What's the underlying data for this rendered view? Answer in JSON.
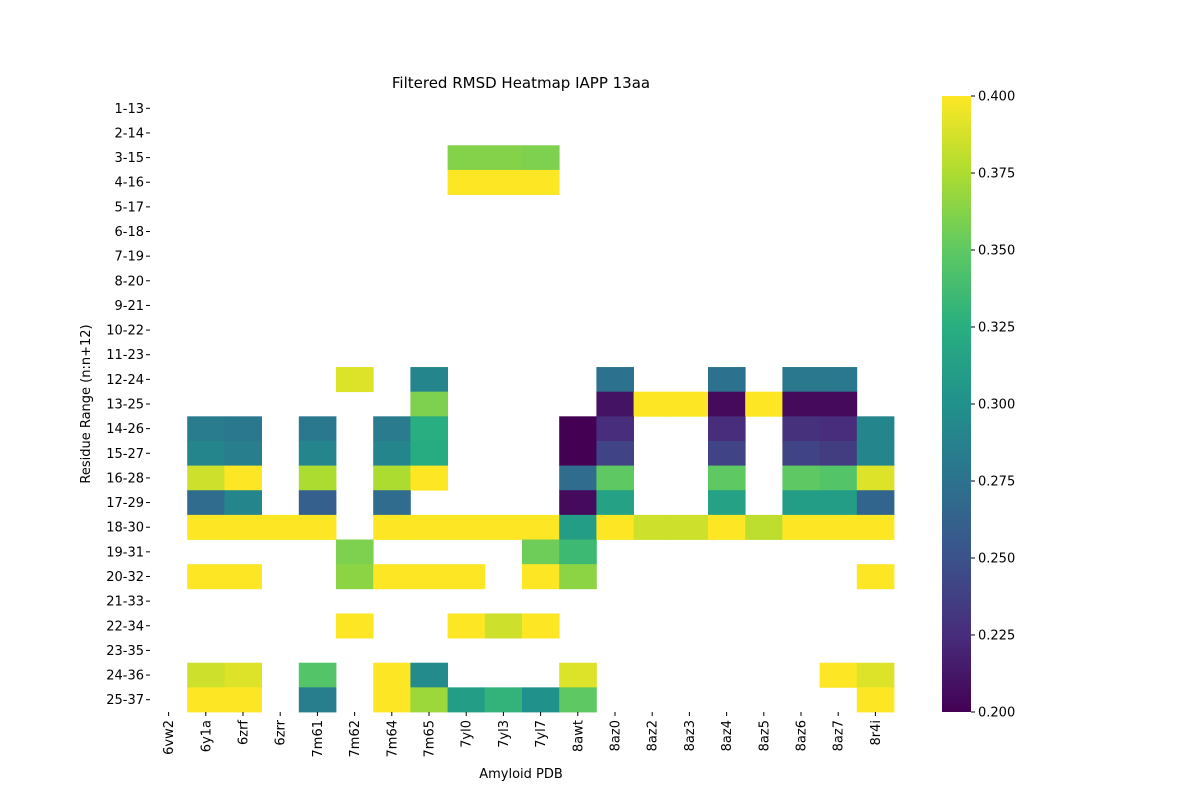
{
  "chart_data": {
    "type": "heatmap",
    "title": "Filtered RMSD Heatmap IAPP 13aa",
    "xlabel": "Amyloid PDB",
    "ylabel": "Residue Range (n:n+12)",
    "x_categories": [
      "6vw2",
      "6y1a",
      "6zrf",
      "6zrr",
      "7m61",
      "7m62",
      "7m64",
      "7m65",
      "7yl0",
      "7yl3",
      "7yl7",
      "8awt",
      "8az0",
      "8az2",
      "8az3",
      "8az4",
      "8az5",
      "8az6",
      "8az7",
      "8r4i"
    ],
    "y_categories": [
      "1-13",
      "2-14",
      "3-15",
      "4-16",
      "5-17",
      "6-18",
      "7-19",
      "8-20",
      "9-21",
      "10-22",
      "11-23",
      "12-24",
      "13-25",
      "14-26",
      "15-27",
      "16-28",
      "17-29",
      "18-30",
      "19-31",
      "20-32",
      "21-33",
      "22-34",
      "23-35",
      "24-36",
      "25-37"
    ],
    "colormap": "viridis",
    "vmin": 0.2,
    "vmax": 0.4,
    "colorbar_ticks": [
      "0.200",
      "0.225",
      "0.250",
      "0.275",
      "0.300",
      "0.325",
      "0.350",
      "0.375",
      "0.400"
    ],
    "values": [
      [
        null,
        null,
        null,
        null,
        null,
        null,
        null,
        null,
        null,
        null,
        null,
        null,
        null,
        null,
        null,
        null,
        null,
        null,
        null,
        null
      ],
      [
        null,
        null,
        null,
        null,
        null,
        null,
        null,
        null,
        null,
        null,
        null,
        null,
        null,
        null,
        null,
        null,
        null,
        null,
        null,
        null
      ],
      [
        null,
        null,
        null,
        null,
        null,
        null,
        null,
        null,
        0.362,
        0.362,
        0.36,
        null,
        null,
        null,
        null,
        null,
        null,
        null,
        null,
        null
      ],
      [
        null,
        null,
        null,
        null,
        null,
        null,
        null,
        null,
        0.4,
        0.4,
        0.4,
        null,
        null,
        null,
        null,
        null,
        null,
        null,
        null,
        null
      ],
      [
        null,
        null,
        null,
        null,
        null,
        null,
        null,
        null,
        null,
        null,
        null,
        null,
        null,
        null,
        null,
        null,
        null,
        null,
        null,
        null
      ],
      [
        null,
        null,
        null,
        null,
        null,
        null,
        null,
        null,
        null,
        null,
        null,
        null,
        null,
        null,
        null,
        null,
        null,
        null,
        null,
        null
      ],
      [
        null,
        null,
        null,
        null,
        null,
        null,
        null,
        null,
        null,
        null,
        null,
        null,
        null,
        null,
        null,
        null,
        null,
        null,
        null,
        null
      ],
      [
        null,
        null,
        null,
        null,
        null,
        null,
        null,
        null,
        null,
        null,
        null,
        null,
        null,
        null,
        null,
        null,
        null,
        null,
        null,
        null
      ],
      [
        null,
        null,
        null,
        null,
        null,
        null,
        null,
        null,
        null,
        null,
        null,
        null,
        null,
        null,
        null,
        null,
        null,
        null,
        null,
        null
      ],
      [
        null,
        null,
        null,
        null,
        null,
        null,
        null,
        null,
        null,
        null,
        null,
        null,
        null,
        null,
        null,
        null,
        null,
        null,
        null,
        null
      ],
      [
        null,
        null,
        null,
        null,
        null,
        null,
        null,
        null,
        null,
        null,
        null,
        null,
        null,
        null,
        null,
        null,
        null,
        null,
        null,
        null
      ],
      [
        null,
        null,
        null,
        null,
        null,
        0.39,
        null,
        0.29,
        null,
        null,
        null,
        null,
        0.275,
        null,
        null,
        0.275,
        null,
        0.28,
        0.28,
        null
      ],
      [
        null,
        null,
        null,
        null,
        null,
        null,
        null,
        0.36,
        null,
        null,
        null,
        null,
        0.21,
        0.4,
        0.4,
        0.205,
        0.4,
        0.205,
        0.205,
        null
      ],
      [
        null,
        0.283,
        0.28,
        null,
        0.28,
        null,
        0.282,
        0.325,
        null,
        null,
        null,
        0.2,
        0.225,
        null,
        null,
        0.225,
        null,
        0.228,
        0.225,
        0.29
      ],
      [
        null,
        0.29,
        0.285,
        null,
        0.29,
        null,
        0.29,
        0.322,
        null,
        null,
        null,
        0.2,
        0.24,
        null,
        null,
        0.24,
        null,
        0.24,
        0.235,
        0.29
      ],
      [
        null,
        0.385,
        0.4,
        null,
        0.375,
        null,
        0.375,
        0.4,
        null,
        null,
        null,
        0.27,
        0.35,
        null,
        null,
        0.35,
        null,
        0.35,
        0.345,
        0.39
      ],
      [
        null,
        0.27,
        0.29,
        null,
        0.26,
        null,
        0.27,
        null,
        null,
        null,
        null,
        0.205,
        0.315,
        null,
        null,
        0.315,
        null,
        0.31,
        0.31,
        0.265
      ],
      [
        null,
        0.4,
        0.4,
        0.4,
        0.4,
        null,
        0.4,
        0.4,
        0.4,
        0.4,
        0.4,
        0.31,
        0.4,
        0.385,
        0.385,
        0.4,
        0.38,
        0.4,
        0.4,
        0.4
      ],
      [
        null,
        null,
        null,
        null,
        null,
        0.36,
        null,
        null,
        null,
        null,
        0.355,
        0.335,
        null,
        null,
        null,
        null,
        null,
        null,
        null,
        null
      ],
      [
        null,
        0.4,
        0.4,
        null,
        null,
        0.365,
        0.4,
        0.4,
        0.4,
        null,
        0.4,
        0.365,
        null,
        null,
        null,
        null,
        null,
        null,
        null,
        0.4
      ],
      [
        null,
        null,
        null,
        null,
        null,
        null,
        null,
        null,
        null,
        null,
        null,
        null,
        null,
        null,
        null,
        null,
        null,
        null,
        null,
        null
      ],
      [
        null,
        null,
        null,
        null,
        null,
        0.4,
        null,
        null,
        0.4,
        0.385,
        0.4,
        null,
        null,
        null,
        null,
        null,
        null,
        null,
        null,
        null
      ],
      [
        null,
        null,
        null,
        null,
        null,
        null,
        null,
        null,
        null,
        null,
        null,
        null,
        null,
        null,
        null,
        null,
        null,
        null,
        null,
        null
      ],
      [
        null,
        0.385,
        0.39,
        null,
        0.345,
        null,
        0.4,
        0.295,
        null,
        null,
        null,
        0.39,
        null,
        null,
        null,
        null,
        null,
        null,
        0.4,
        0.39
      ],
      [
        null,
        0.4,
        0.4,
        null,
        0.285,
        null,
        0.4,
        0.37,
        0.31,
        0.33,
        0.3,
        0.35,
        null,
        null,
        null,
        null,
        null,
        null,
        null,
        0.4
      ]
    ]
  }
}
